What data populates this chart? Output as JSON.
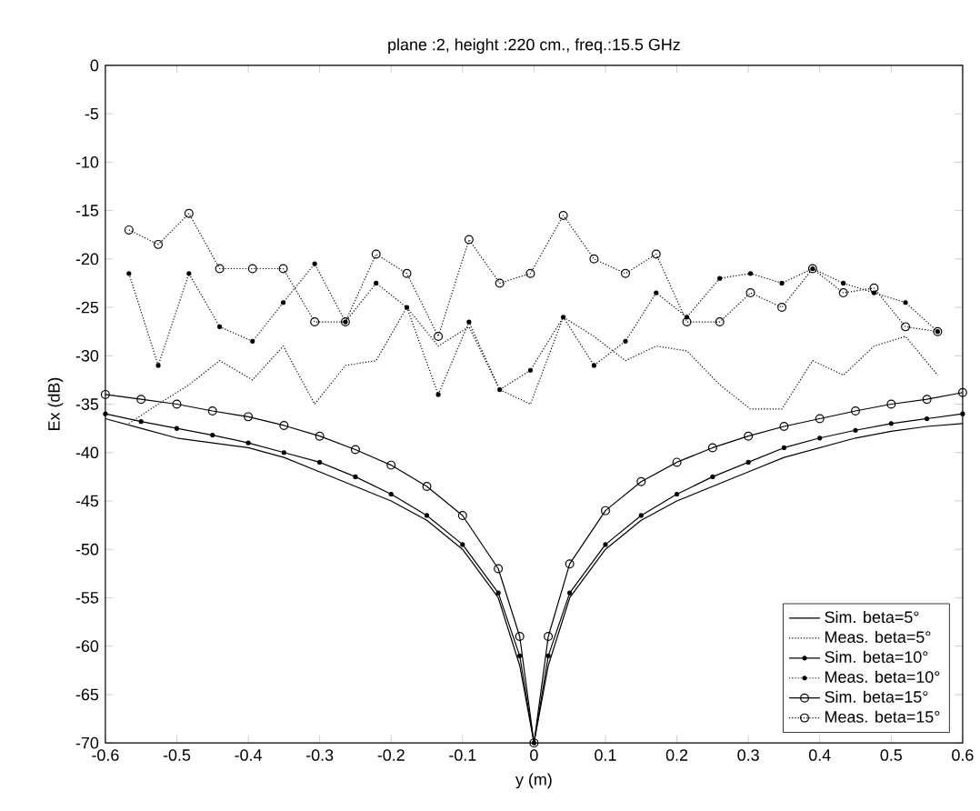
{
  "chart_data": {
    "type": "line",
    "title": "plane :2, height :220 cm., freq.:15.5 GHz",
    "xlabel": "y (m)",
    "ylabel": "Ex (dB)",
    "xlim": [
      -0.6,
      0.6
    ],
    "ylim": [
      -70,
      0
    ],
    "xticks": [
      -0.6,
      -0.5,
      -0.4,
      -0.3,
      -0.2,
      -0.1,
      0,
      0.1,
      0.2,
      0.3,
      0.4,
      0.5,
      0.6
    ],
    "yticks": [
      -70,
      -65,
      -60,
      -55,
      -50,
      -45,
      -40,
      -35,
      -30,
      -25,
      -20,
      -15,
      -10,
      -5,
      0
    ],
    "grid": false,
    "legend": "bottom right",
    "series": [
      {
        "name": "Sim. beta=5°",
        "color": "#000000",
        "line_style": "solid",
        "marker": "none",
        "x": [
          -0.6,
          -0.55,
          -0.5,
          -0.45,
          -0.4,
          -0.35,
          -0.3,
          -0.25,
          -0.2,
          -0.15,
          -0.1,
          -0.05,
          -0.02,
          0,
          0.02,
          0.05,
          0.1,
          0.15,
          0.2,
          0.25,
          0.3,
          0.35,
          0.4,
          0.45,
          0.5,
          0.55,
          0.6
        ],
        "values": [
          -36.5,
          -37.5,
          -38.5,
          -39,
          -39.5,
          -40.5,
          -42,
          -43.5,
          -45,
          -47,
          -50,
          -55,
          -62,
          -70,
          -62,
          -55,
          -50,
          -47,
          -45,
          -43.5,
          -42,
          -40.5,
          -39.5,
          -38.5,
          -37.8,
          -37.3,
          -37
        ]
      },
      {
        "name": "Meas. beta=5°",
        "color": "#000000",
        "line_style": "dotted",
        "marker": "none",
        "x": [
          -0.567,
          -0.526,
          -0.483,
          -0.44,
          -0.394,
          -0.351,
          -0.307,
          -0.264,
          -0.221,
          -0.178,
          -0.134,
          -0.091,
          -0.048,
          -0.005,
          0.041,
          0.084,
          0.128,
          0.171,
          0.214,
          0.26,
          0.303,
          0.347,
          0.39,
          0.433,
          0.476,
          0.52,
          0.565
        ],
        "values": [
          -37,
          -35,
          -33,
          -30.5,
          -32.5,
          -29,
          -35,
          -31,
          -30.5,
          -25,
          -29,
          -27,
          -33.5,
          -35,
          -26,
          -28,
          -30.5,
          -29,
          -29.5,
          -33,
          -35.5,
          -35.5,
          -30.5,
          -32,
          -29,
          -28,
          -32
        ]
      },
      {
        "name": "Sim. beta=10°",
        "color": "#000000",
        "line_style": "solid",
        "marker": "star",
        "x": [
          -0.6,
          -0.55,
          -0.5,
          -0.45,
          -0.4,
          -0.35,
          -0.3,
          -0.25,
          -0.2,
          -0.15,
          -0.1,
          -0.05,
          -0.02,
          0,
          0.02,
          0.05,
          0.1,
          0.15,
          0.2,
          0.25,
          0.3,
          0.35,
          0.4,
          0.45,
          0.5,
          0.55,
          0.6
        ],
        "values": [
          -36,
          -36.8,
          -37.5,
          -38.2,
          -39,
          -40,
          -41,
          -42.5,
          -44.3,
          -46.5,
          -49.5,
          -54.5,
          -61,
          -70,
          -61,
          -54.5,
          -49.5,
          -46.5,
          -44.3,
          -42.5,
          -41,
          -39.5,
          -38.5,
          -37.7,
          -37,
          -36.5,
          -36
        ]
      },
      {
        "name": "Meas. beta=10°",
        "color": "#000000",
        "line_style": "dotted",
        "marker": "star",
        "x": [
          -0.567,
          -0.526,
          -0.483,
          -0.44,
          -0.394,
          -0.351,
          -0.307,
          -0.264,
          -0.221,
          -0.178,
          -0.134,
          -0.091,
          -0.048,
          -0.005,
          0.041,
          0.084,
          0.128,
          0.171,
          0.214,
          0.26,
          0.303,
          0.347,
          0.39,
          0.433,
          0.476,
          0.52,
          0.565
        ],
        "values": [
          -21.5,
          -31,
          -21.5,
          -27,
          -28.5,
          -24.5,
          -20.5,
          -26.5,
          -22.5,
          -25,
          -34,
          -26.5,
          -33.5,
          -31.5,
          -26,
          -31,
          -28.5,
          -23.5,
          -26,
          -22,
          -21.5,
          -22.5,
          -21,
          -22.5,
          -23.5,
          -24.5,
          -27.5
        ]
      },
      {
        "name": "Sim. beta=15°",
        "color": "#000000",
        "line_style": "solid",
        "marker": "circle",
        "x": [
          -0.6,
          -0.55,
          -0.5,
          -0.45,
          -0.4,
          -0.35,
          -0.3,
          -0.25,
          -0.2,
          -0.15,
          -0.1,
          -0.05,
          -0.02,
          0,
          0.02,
          0.05,
          0.1,
          0.15,
          0.2,
          0.25,
          0.3,
          0.35,
          0.4,
          0.45,
          0.5,
          0.55,
          0.6
        ],
        "values": [
          -34,
          -34.5,
          -35,
          -35.7,
          -36.3,
          -37.2,
          -38.3,
          -39.7,
          -41.3,
          -43.5,
          -46.5,
          -52,
          -59,
          -70,
          -59,
          -51.5,
          -46,
          -43,
          -41,
          -39.5,
          -38.3,
          -37.3,
          -36.5,
          -35.7,
          -35,
          -34.5,
          -33.8
        ]
      },
      {
        "name": "Meas. beta=15°",
        "color": "#000000",
        "line_style": "dotted",
        "marker": "circle",
        "x": [
          -0.567,
          -0.526,
          -0.483,
          -0.44,
          -0.394,
          -0.351,
          -0.307,
          -0.264,
          -0.221,
          -0.178,
          -0.134,
          -0.091,
          -0.048,
          -0.005,
          0.041,
          0.084,
          0.128,
          0.171,
          0.214,
          0.26,
          0.303,
          0.347,
          0.39,
          0.433,
          0.476,
          0.52,
          0.565
        ],
        "values": [
          -17,
          -18.5,
          -15.3,
          -21,
          -21,
          -21,
          -26.5,
          -26.5,
          -19.5,
          -21.5,
          -28,
          -18,
          -22.5,
          -21.5,
          -15.5,
          -20,
          -21.5,
          -19.5,
          -26.5,
          -26.5,
          -23.5,
          -25,
          -21,
          -23.5,
          -23,
          -27,
          -27.5
        ]
      }
    ]
  }
}
